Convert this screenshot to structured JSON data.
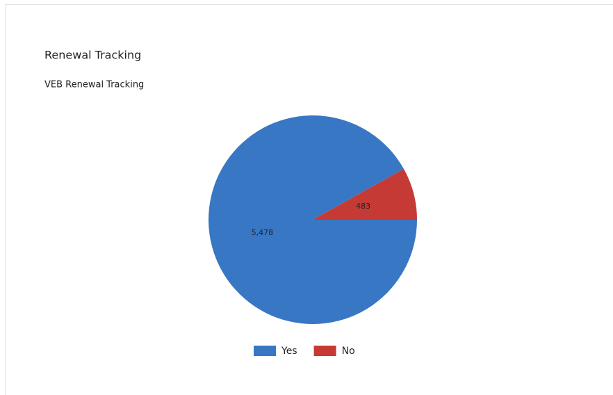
{
  "chart_data": {
    "type": "pie",
    "title": "Renewal Tracking",
    "subtitle": "VEB Renewal Tracking",
    "categories": [
      "Yes",
      "No"
    ],
    "values": [
      5478,
      483
    ],
    "value_labels": [
      "5,478",
      "483"
    ],
    "colors": [
      "#3877c4",
      "#c63a35"
    ],
    "legend": "bottom"
  }
}
